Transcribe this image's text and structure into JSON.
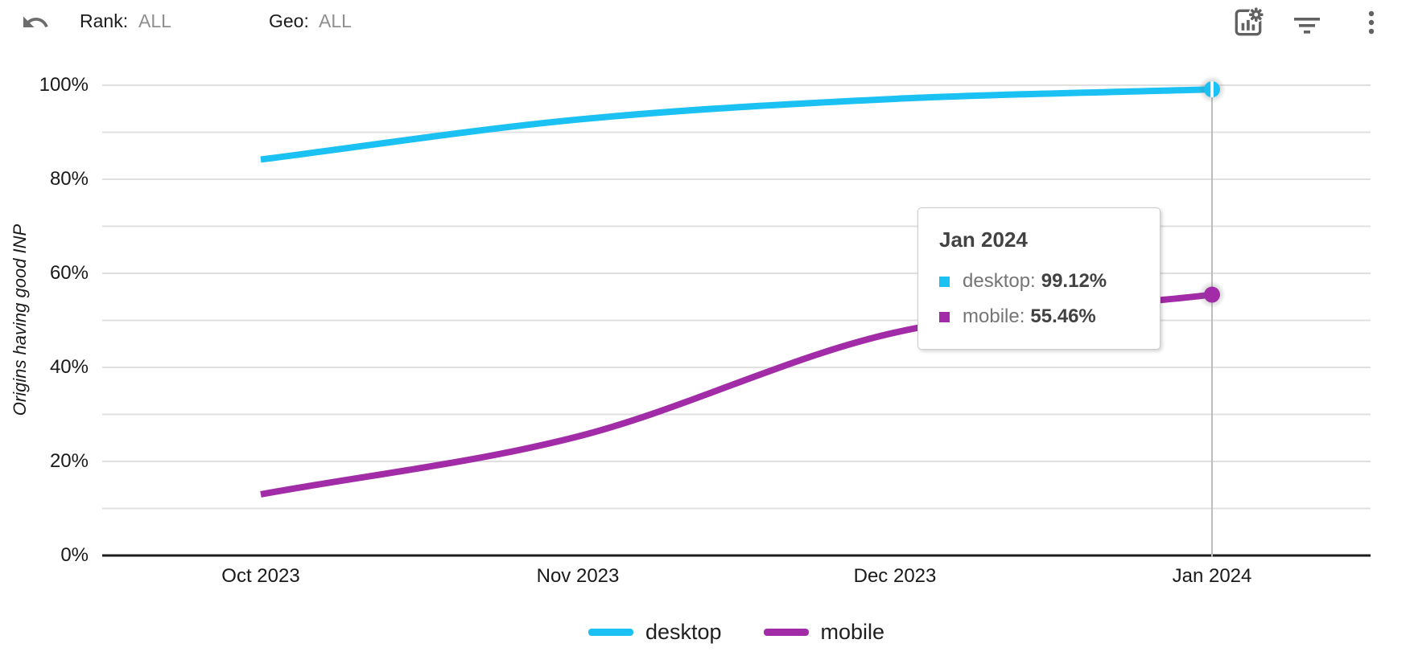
{
  "header": {
    "rank_label": "Rank:",
    "rank_value": "ALL",
    "geo_label": "Geo:",
    "geo_value": "ALL"
  },
  "chart_data": {
    "type": "line",
    "title": "",
    "ylabel": "Origins having good INP",
    "xlabel": "",
    "categories": [
      "Oct 2023",
      "Nov 2023",
      "Dec 2023",
      "Jan 2024"
    ],
    "series": [
      {
        "name": "desktop",
        "color": "#1BC1F2",
        "values": [
          84.2,
          92.7,
          97.1,
          99.12
        ]
      },
      {
        "name": "mobile",
        "color": "#A22CA7",
        "values": [
          13.0,
          25.3,
          47.4,
          55.46
        ]
      }
    ],
    "ylim": [
      0,
      100
    ],
    "ytick_labels": [
      "0%",
      "20%",
      "40%",
      "60%",
      "80%",
      "100%"
    ],
    "ytick_values": [
      0,
      20,
      40,
      60,
      80,
      100
    ],
    "grid_step_percent": 10,
    "grid": "horizontal",
    "legend_position": "bottom",
    "smoothed": true,
    "highlighted_category": "Jan 2024"
  },
  "tooltip": {
    "title": "Jan 2024",
    "rows": [
      {
        "series": "desktop",
        "value": "99.12%"
      },
      {
        "series": "mobile",
        "value": "55.46%"
      }
    ]
  },
  "colors": {
    "gridline": "#e0e0e0",
    "axis_line": "#1c1c1c",
    "crosshair": "#bdbdbd",
    "icon_gray": "#616161"
  }
}
